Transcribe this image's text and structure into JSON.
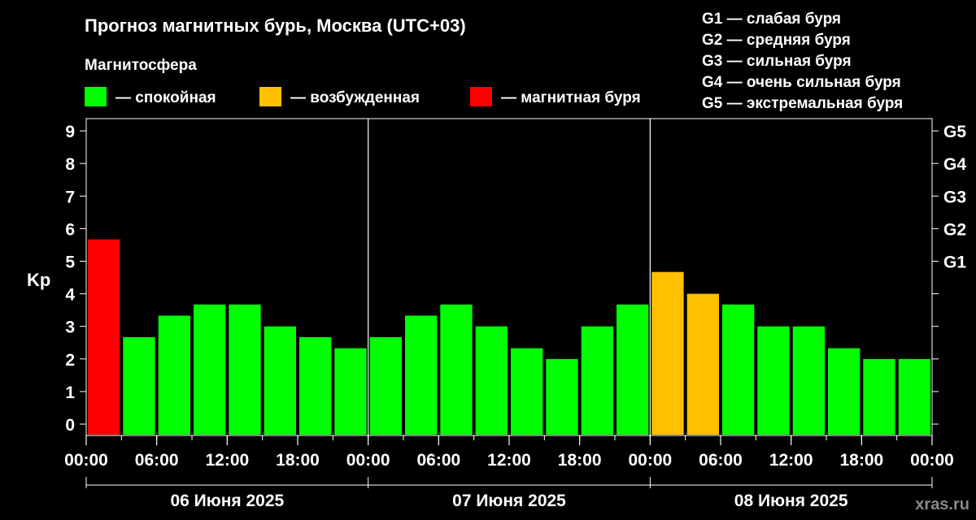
{
  "title": "Прогноз магнитных бурь, Москва (UTC+03)",
  "subtitle": "Магнитосфера",
  "legend": [
    {
      "label": "— спокойная",
      "color": "#00ff00"
    },
    {
      "label": "— возбужденная",
      "color": "#ffc000"
    },
    {
      "label": "— магнитная буря",
      "color": "#ff0000"
    }
  ],
  "g_legend": [
    "G1 — слабая буря",
    "G2 — средняя буря",
    "G3 — сильная буря",
    "G4 — очень сильная буря",
    "G5 — экстремальная буря"
  ],
  "watermark": "xras.ru",
  "chart_data": {
    "type": "bar",
    "ylabel": "Kp",
    "ylim": [
      0,
      9
    ],
    "y_ticks": [
      "0",
      "1",
      "2",
      "3",
      "4",
      "5",
      "6",
      "7",
      "8",
      "9"
    ],
    "g_ticks": [
      {
        "kp": 5,
        "label": "G1"
      },
      {
        "kp": 6,
        "label": "G2"
      },
      {
        "kp": 7,
        "label": "G3"
      },
      {
        "kp": 8,
        "label": "G4"
      },
      {
        "kp": 9,
        "label": "G5"
      }
    ],
    "x_ticks": [
      "00:00",
      "06:00",
      "12:00",
      "18:00",
      "00:00",
      "06:00",
      "12:00",
      "18:00",
      "00:00",
      "06:00",
      "12:00",
      "18:00",
      "00:00"
    ],
    "days": [
      "06 Июня 2025",
      "07 Июня 2025",
      "08 Июня 2025"
    ],
    "colors": {
      "quiet": "#00ff00",
      "disturbed": "#ffc000",
      "storm": "#ff0000",
      "background": "#000000",
      "grid": "#ffffff"
    },
    "series": [
      {
        "values": [
          5.67,
          2.67,
          3.33,
          3.67,
          3.67,
          3.0,
          2.67,
          2.33,
          2.67,
          3.33,
          3.67,
          3.0,
          2.33,
          2.0,
          3.0,
          3.67,
          4.67,
          4.0,
          3.67,
          3.0,
          3.0,
          2.33,
          2.0,
          2.0
        ],
        "levels": [
          "storm",
          "quiet",
          "quiet",
          "quiet",
          "quiet",
          "quiet",
          "quiet",
          "quiet",
          "quiet",
          "quiet",
          "quiet",
          "quiet",
          "quiet",
          "quiet",
          "quiet",
          "quiet",
          "disturbed",
          "disturbed",
          "quiet",
          "quiet",
          "quiet",
          "quiet",
          "quiet",
          "quiet"
        ]
      }
    ]
  }
}
